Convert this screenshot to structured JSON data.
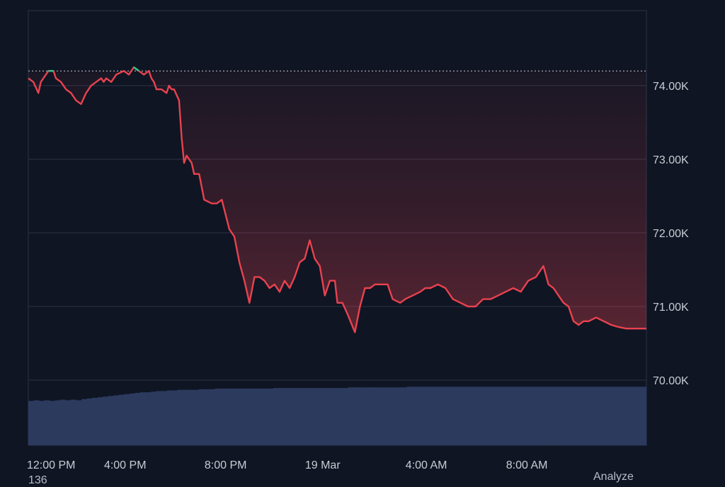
{
  "colors": {
    "background": "#0f1523",
    "grid": "#2b3446",
    "line_down": "#e8424f",
    "line_up": "#2fc48d",
    "volume": "#2c3a5e",
    "text": "#c9ccd3"
  },
  "footer": {
    "left_text": "136",
    "right_text": "Analyze"
  },
  "chart_data": {
    "type": "area",
    "title": "",
    "xlabel": "",
    "ylabel": "",
    "ylim": [
      69000,
      75000
    ],
    "y_ticks": [
      70000,
      71000,
      72000,
      73000,
      74000
    ],
    "y_tick_labels": [
      "70.00K",
      "71.00K",
      "72.00K",
      "73.00K",
      "74.00K"
    ],
    "xlim": [
      0,
      24.6
    ],
    "x_ticks": [
      0,
      4,
      8,
      12,
      16,
      20
    ],
    "x_tick_labels": [
      "12:00 PM",
      "4:00 PM",
      "8:00 PM",
      "19 Mar",
      "4:00 AM",
      "8:00 AM"
    ],
    "baseline_price": 74200,
    "grid": true,
    "legend": "none",
    "series": [
      {
        "x": [
          0,
          0.2,
          0.4,
          0.5,
          0.6,
          0.8,
          1.0,
          1.1,
          1.3,
          1.5,
          1.7,
          1.9,
          2.1,
          2.3,
          2.5,
          2.7,
          2.9,
          3.0,
          3.1,
          3.3,
          3.5,
          3.8,
          4.0,
          4.2,
          4.4,
          4.6,
          4.8,
          4.9,
          5.0,
          5.1,
          5.3,
          5.5,
          5.6,
          5.7,
          5.8,
          6.0,
          6.1,
          6.2,
          6.3,
          6.5,
          6.6,
          6.8,
          7.0,
          7.3,
          7.5,
          7.7,
          8.0,
          8.2,
          8.4,
          8.6,
          8.8,
          9.0,
          9.2,
          9.4,
          9.6,
          9.8,
          10.0,
          10.2,
          10.4,
          10.6,
          10.8,
          11.0,
          11.2,
          11.4,
          11.6,
          11.8,
          12.0,
          12.2,
          12.3,
          12.5,
          12.7,
          13.0,
          13.2,
          13.4,
          13.6,
          13.8,
          14.0,
          14.3,
          14.5,
          14.8,
          15.0,
          15.3,
          15.6,
          15.8,
          16.0,
          16.3,
          16.6,
          16.9,
          17.2,
          17.5,
          17.8,
          18.1,
          18.4,
          18.7,
          19.0,
          19.3,
          19.6,
          19.9,
          20.2,
          20.5,
          20.7,
          20.9,
          21.1,
          21.3,
          21.5,
          21.7,
          21.9,
          22.1,
          22.3,
          22.6,
          22.9,
          23.2,
          23.5,
          23.8,
          24.1,
          24.4,
          24.6
        ],
        "values": [
          74100,
          74050,
          73900,
          74050,
          74100,
          74200,
          74200,
          74100,
          74050,
          73950,
          73900,
          73800,
          73750,
          73900,
          74000,
          74050,
          74100,
          74050,
          74100,
          74050,
          74150,
          74200,
          74150,
          74250,
          74200,
          74150,
          74200,
          74100,
          74050,
          73950,
          73950,
          73900,
          74000,
          73950,
          73950,
          73800,
          73300,
          72950,
          73050,
          72950,
          72800,
          72800,
          72450,
          72400,
          72400,
          72450,
          72050,
          71950,
          71600,
          71350,
          71050,
          71400,
          71400,
          71350,
          71250,
          71300,
          71200,
          71350,
          71250,
          71400,
          71600,
          71650,
          71900,
          71650,
          71550,
          71150,
          71350,
          71350,
          71050,
          71050,
          70900,
          70650,
          71000,
          71250,
          71250,
          71300,
          71300,
          71300,
          71100,
          71050,
          71100,
          71150,
          71200,
          71250,
          71250,
          71300,
          71250,
          71100,
          71050,
          71000,
          71000,
          71100,
          71100,
          71150,
          71200,
          71250,
          71200,
          71350,
          71400,
          71550,
          71300,
          71250,
          71150,
          71050,
          71000,
          70800,
          70750,
          70800,
          70800,
          70850,
          70800,
          70750,
          70720,
          70700,
          70700,
          70700,
          70700
        ],
        "volume_values": [
          0.72,
          0.73,
          0.72,
          0.73,
          0.72,
          0.73,
          0.74,
          0.73,
          0.74,
          0.73,
          0.75,
          0.76,
          0.77,
          0.78,
          0.79,
          0.8,
          0.81,
          0.82,
          0.83,
          0.84,
          0.85,
          0.86,
          0.86,
          0.87,
          0.88,
          0.88,
          0.89,
          0.89,
          0.9,
          0.9,
          0.9,
          0.9,
          0.91,
          0.91,
          0.91,
          0.92,
          0.92,
          0.92,
          0.92,
          0.92,
          0.92,
          0.92,
          0.92,
          0.92,
          0.92,
          0.92,
          0.93,
          0.93,
          0.93,
          0.93,
          0.93,
          0.93,
          0.93,
          0.93,
          0.93,
          0.93,
          0.93,
          0.93,
          0.93,
          0.93,
          0.94,
          0.94,
          0.94,
          0.94,
          0.94,
          0.94,
          0.94,
          0.94,
          0.94,
          0.94,
          0.94,
          0.95,
          0.95,
          0.95,
          0.95,
          0.95,
          0.95,
          0.95,
          0.95,
          0.95,
          0.95,
          0.95,
          0.95,
          0.95,
          0.95,
          0.95,
          0.95,
          0.95,
          0.95,
          0.95,
          0.95,
          0.95,
          0.95,
          0.95,
          0.95,
          0.95,
          0.95,
          0.95,
          0.95,
          0.95,
          0.95,
          0.95,
          0.95,
          0.95,
          0.95,
          0.95,
          0.95,
          0.95,
          0.95,
          0.95,
          0.95,
          0.95,
          0.95,
          0.95,
          0.95,
          0.95
        ]
      }
    ]
  }
}
